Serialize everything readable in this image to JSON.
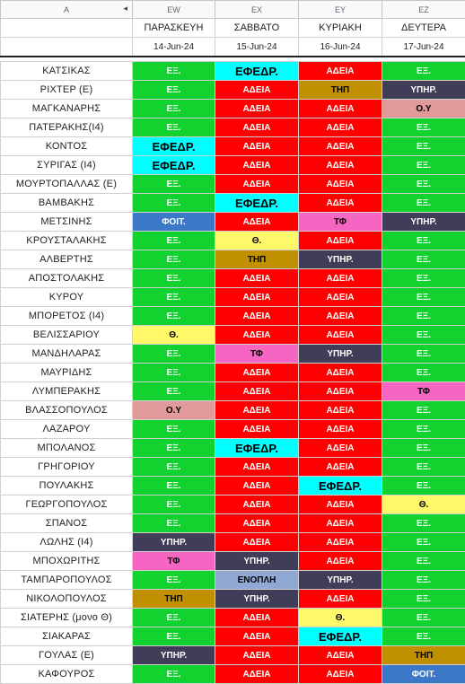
{
  "column_letters": [
    "A",
    "EW",
    "EX",
    "EY",
    "EZ"
  ],
  "days": [
    "ΠΑΡΑΣΚΕΥΗ",
    "ΣΑΒΒΑΤΟ",
    "ΚΥΡΙΑΚΗ",
    "ΔΕΥΤΕΡΑ"
  ],
  "dates": [
    "14-Jun-24",
    "15-Jun-24",
    "16-Jun-24",
    "17-Jun-24"
  ],
  "status_colors": {
    "ΕΞ.": {
      "bg": "#11d22e",
      "fg": "#ffffff"
    },
    "ΕΦΕΔΡ.": {
      "bg": "#00ffff",
      "fg": "#000000"
    },
    "ΑΔΕΙΑ": {
      "bg": "#ff0000",
      "fg": "#ffffff"
    },
    "ΤΗΠ": {
      "bg": "#c09000",
      "fg": "#000000"
    },
    "ΥΠΗΡ.": {
      "bg": "#3f3d57",
      "fg": "#ffffff"
    },
    "Ο.Υ": {
      "bg": "#e09a9a",
      "fg": "#000000"
    },
    "ΦΟΙΤ.": {
      "bg": "#3c78c8",
      "fg": "#ffffff"
    },
    "ΤΦ": {
      "bg": "#f665c2",
      "fg": "#000000"
    },
    "Θ.": {
      "bg": "#fff86a",
      "fg": "#000000"
    },
    "ΕΝΟΠΛΗ": {
      "bg": "#92a8d4",
      "fg": "#000000"
    }
  },
  "rows": [
    {
      "name": "ΚΑΤΣΙΚΑΣ",
      "cells": [
        "ΕΞ.",
        "ΕΦΕΔΡ.",
        "ΑΔΕΙΑ",
        "ΕΞ."
      ]
    },
    {
      "name": "ΡΙΧΤΕΡ (Ε)",
      "cells": [
        "ΕΞ.",
        "ΑΔΕΙΑ",
        "ΤΗΠ",
        "ΥΠΗΡ."
      ]
    },
    {
      "name": "ΜΑΓΚΑΝΑΡΗΣ",
      "cells": [
        "ΕΞ.",
        "ΑΔΕΙΑ",
        "ΑΔΕΙΑ",
        "Ο.Υ"
      ]
    },
    {
      "name": "ΠΑΤΕΡΑΚΗΣ(Ι4)",
      "cells": [
        "ΕΞ.",
        "ΑΔΕΙΑ",
        "ΑΔΕΙΑ",
        "ΕΞ."
      ]
    },
    {
      "name": "ΚΟΝΤΟΣ",
      "cells": [
        "ΕΦΕΔΡ.",
        "ΑΔΕΙΑ",
        "ΑΔΕΙΑ",
        "ΕΞ."
      ]
    },
    {
      "name": "ΣΥΡΙΓΑΣ (Ι4)",
      "cells": [
        "ΕΦΕΔΡ.",
        "ΑΔΕΙΑ",
        "ΑΔΕΙΑ",
        "ΕΞ."
      ]
    },
    {
      "name": "ΜΟΥΡΤΟΠΑΛΛΑΣ (Ε)",
      "cells": [
        "ΕΞ.",
        "ΑΔΕΙΑ",
        "ΑΔΕΙΑ",
        "ΕΞ."
      ]
    },
    {
      "name": "ΒΑΜΒΑΚΗΣ",
      "cells": [
        "ΕΞ.",
        "ΕΦΕΔΡ.",
        "ΑΔΕΙΑ",
        "ΕΞ."
      ]
    },
    {
      "name": "ΜΕΤΣΙΝΗΣ",
      "cells": [
        "ΦΟΙΤ.",
        "ΑΔΕΙΑ",
        "ΤΦ",
        "ΥΠΗΡ."
      ]
    },
    {
      "name": "ΚΡΟΥΣΤΑΛΑΚΗΣ",
      "cells": [
        "ΕΞ.",
        "Θ.",
        "ΑΔΕΙΑ",
        "ΕΞ."
      ]
    },
    {
      "name": "ΑΛΒΕΡΤΗΣ",
      "cells": [
        "ΕΞ.",
        "ΤΗΠ",
        "ΥΠΗΡ.",
        "ΕΞ."
      ]
    },
    {
      "name": "ΑΠΟΣΤΟΛΑΚΗΣ",
      "cells": [
        "ΕΞ.",
        "ΑΔΕΙΑ",
        "ΑΔΕΙΑ",
        "ΕΞ."
      ]
    },
    {
      "name": "ΚΥΡΟΥ",
      "cells": [
        "ΕΞ.",
        "ΑΔΕΙΑ",
        "ΑΔΕΙΑ",
        "ΕΞ."
      ]
    },
    {
      "name": "ΜΠΟΡΕΤΟΣ (Ι4)",
      "cells": [
        "ΕΞ.",
        "ΑΔΕΙΑ",
        "ΑΔΕΙΑ",
        "ΕΞ."
      ]
    },
    {
      "name": "ΒΕΛΙΣΣΑΡΙΟΥ",
      "cells": [
        "Θ.",
        "ΑΔΕΙΑ",
        "ΑΔΕΙΑ",
        "ΕΞ."
      ]
    },
    {
      "name": "ΜΑΝΔΗΛΑΡΑΣ",
      "cells": [
        "ΕΞ.",
        "ΤΦ",
        "ΥΠΗΡ.",
        "ΕΞ."
      ]
    },
    {
      "name": "ΜΑΥΡΙΔΗΣ",
      "cells": [
        "ΕΞ.",
        "ΑΔΕΙΑ",
        "ΑΔΕΙΑ",
        "ΕΞ."
      ]
    },
    {
      "name": "ΛΥΜΠΕΡΑΚΗΣ",
      "cells": [
        "ΕΞ.",
        "ΑΔΕΙΑ",
        "ΑΔΕΙΑ",
        "ΤΦ"
      ]
    },
    {
      "name": "ΒΛΑΣΣΟΠΟΥΛΟΣ",
      "cells": [
        "Ο.Υ",
        "ΑΔΕΙΑ",
        "ΑΔΕΙΑ",
        "ΕΞ."
      ]
    },
    {
      "name": "ΛΑΖΑΡΟΥ",
      "cells": [
        "ΕΞ.",
        "ΑΔΕΙΑ",
        "ΑΔΕΙΑ",
        "ΕΞ."
      ]
    },
    {
      "name": "ΜΠΟΛΑΝΟΣ",
      "cells": [
        "ΕΞ.",
        "ΕΦΕΔΡ.",
        "ΑΔΕΙΑ",
        "ΕΞ."
      ]
    },
    {
      "name": "ΓΡΗΓΟΡΙΟΥ",
      "cells": [
        "ΕΞ.",
        "ΑΔΕΙΑ",
        "ΑΔΕΙΑ",
        "ΕΞ."
      ]
    },
    {
      "name": "ΠΟΥΛΑΚΗΣ",
      "cells": [
        "ΕΞ.",
        "ΑΔΕΙΑ",
        "ΕΦΕΔΡ.",
        "ΕΞ."
      ]
    },
    {
      "name": "ΓΕΩΡΓΟΠΟΥΛΟΣ",
      "cells": [
        "ΕΞ.",
        "ΑΔΕΙΑ",
        "ΑΔΕΙΑ",
        "Θ."
      ]
    },
    {
      "name": "ΣΠΑΝΟΣ",
      "cells": [
        "ΕΞ.",
        "ΑΔΕΙΑ",
        "ΑΔΕΙΑ",
        "ΕΞ."
      ]
    },
    {
      "name": "ΛΩΛΗΣ (Ι4)",
      "cells": [
        "ΥΠΗΡ.",
        "ΑΔΕΙΑ",
        "ΑΔΕΙΑ",
        "ΕΞ."
      ]
    },
    {
      "name": "ΜΠΟΧΩΡΙΤΗΣ",
      "cells": [
        "ΤΦ",
        "ΥΠΗΡ.",
        "ΑΔΕΙΑ",
        "ΕΞ."
      ]
    },
    {
      "name": "ΤΑΜΠΑΡΟΠΟΥΛΟΣ",
      "cells": [
        "ΕΞ.",
        "ΕΝΟΠΛΗ",
        "ΥΠΗΡ.",
        "ΕΞ."
      ]
    },
    {
      "name": "ΝΙΚΟΛΟΠΟΥΛΟΣ",
      "cells": [
        "ΤΗΠ",
        "ΥΠΗΡ.",
        "ΑΔΕΙΑ",
        "ΕΞ."
      ]
    },
    {
      "name": "ΣΙΑΤΕΡΗΣ (μονο Θ)",
      "cells": [
        "ΕΞ.",
        "ΑΔΕΙΑ",
        "Θ.",
        "ΕΞ."
      ]
    },
    {
      "name": "ΣΙΑΚΑΡΑΣ",
      "cells": [
        "ΕΞ.",
        "ΑΔΕΙΑ",
        "ΕΦΕΔΡ.",
        "ΕΞ."
      ]
    },
    {
      "name": "ΓΟΥΛΑΣ (Ε)",
      "cells": [
        "ΥΠΗΡ.",
        "ΑΔΕΙΑ",
        "ΑΔΕΙΑ",
        "ΤΗΠ"
      ]
    },
    {
      "name": "ΚΑΦΟΥΡΟΣ",
      "cells": [
        "ΕΞ.",
        "ΑΔΕΙΑ",
        "ΑΔΕΙΑ",
        "ΦΟΙΤ."
      ]
    }
  ]
}
